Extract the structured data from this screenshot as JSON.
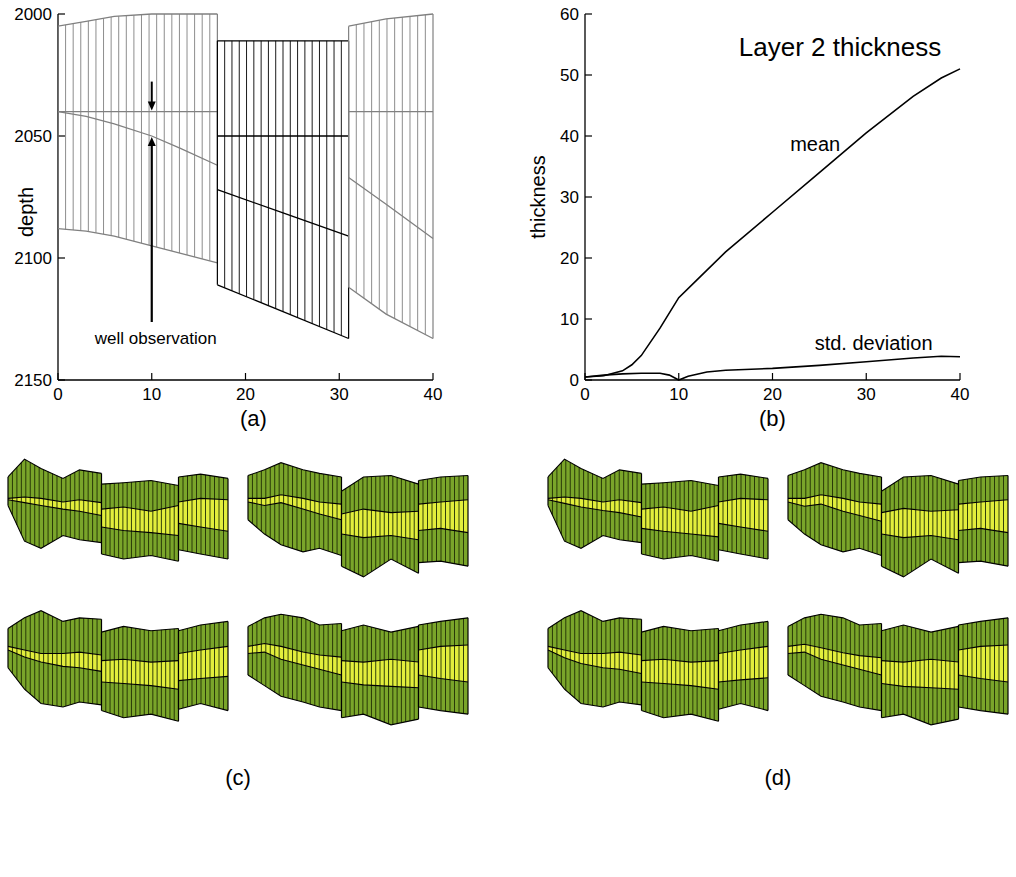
{
  "chart_data": [
    {
      "type": "line",
      "panel_label": "(a)",
      "y_label": "depth",
      "xlim": [
        0,
        40
      ],
      "xticks": [
        0,
        10,
        20,
        30,
        40
      ],
      "ylim": [
        2150,
        2000
      ],
      "yticks": [
        2000,
        2050,
        2100,
        2150
      ],
      "colors": [
        "#808080",
        "#000000",
        "#808080"
      ],
      "block_x": [
        [
          0,
          3,
          6,
          10,
          13,
          17
        ],
        [
          17,
          24,
          31
        ],
        [
          31,
          35,
          40
        ]
      ],
      "blocks": [
        [
          [
            2005,
            2003,
            2001,
            2000,
            2000,
            2000
          ],
          [
            2040,
            2040,
            2040,
            2040,
            2040,
            2040
          ],
          [
            2040,
            2042,
            2045,
            2050,
            2055,
            2062
          ],
          [
            2088,
            2089,
            2091,
            2095,
            2098,
            2102
          ]
        ],
        [
          [
            2011,
            2011,
            2011
          ],
          [
            2050,
            2050,
            2050
          ],
          [
            2072,
            2081.5,
            2091
          ],
          [
            2111,
            2122,
            2133
          ]
        ],
        [
          [
            2005,
            2002,
            2000
          ],
          [
            2040,
            2040,
            2040
          ],
          [
            2067,
            2078,
            2092
          ],
          [
            2112,
            2123,
            2133
          ]
        ]
      ],
      "annotations": [
        {
          "text": "well observation",
          "x": 10,
          "values": [
            2040,
            2050
          ]
        }
      ]
    },
    {
      "type": "line",
      "panel_label": "(b)",
      "title": "Layer 2 thickness",
      "y_label": "thickness",
      "xlim": [
        0,
        40
      ],
      "xticks": [
        0,
        10,
        20,
        30,
        40
      ],
      "ylim": [
        0,
        60
      ],
      "yticks": [
        0,
        10,
        20,
        30,
        40,
        50,
        60
      ],
      "series": [
        {
          "name": "mean",
          "color": "#000000",
          "x": [
            0,
            2,
            4,
            5,
            6,
            8,
            10,
            12,
            15,
            20,
            25,
            30,
            35,
            38,
            40
          ],
          "values": [
            0.5,
            0.7,
            1.5,
            2.5,
            4,
            8.5,
            13.5,
            16.5,
            21,
            27.5,
            34,
            40.5,
            46.5,
            49.5,
            51
          ]
        },
        {
          "name": "std. deviation",
          "color": "#000000",
          "x": [
            0,
            2,
            4,
            6,
            8,
            9,
            10,
            11,
            13,
            15,
            20,
            25,
            30,
            35,
            38,
            40
          ],
          "values": [
            0.5,
            0.8,
            1,
            1.1,
            1.1,
            0.8,
            0,
            0.6,
            1.3,
            1.6,
            1.9,
            2.4,
            3,
            3.6,
            3.9,
            3.8
          ]
        }
      ]
    },
    {
      "type": "section",
      "panel_label": "(c)",
      "tick_labels": false,
      "xlim": [
        0,
        40
      ],
      "ylim": [
        2160,
        1975
      ],
      "colors": [
        "#7aa52a",
        "#e2ee3c",
        "#7aa52a"
      ],
      "block_x": [
        [
          0,
          3,
          6,
          10,
          13,
          17
        ],
        [
          17,
          21,
          26,
          31
        ],
        [
          31,
          35,
          40
        ]
      ],
      "realizations": [
        {
          "blocks": [
            [
              [
                2010,
                1985,
                1998,
                2012,
                2000,
                2005
              ],
              [
                2040,
                2038,
                2040,
                2045,
                2042,
                2046
              ],
              [
                2042,
                2046,
                2050,
                2055,
                2058,
                2064
              ],
              [
                2050,
                2100,
                2110,
                2092,
                2098,
                2102
              ]
            ],
            [
              [
                2020,
                2018,
                2015,
                2022
              ],
              [
                2055,
                2052,
                2058,
                2050
              ],
              [
                2080,
                2085,
                2088,
                2092
              ],
              [
                2118,
                2125,
                2120,
                2128
              ]
            ],
            [
              [
                2010,
                2006,
                2012
              ],
              [
                2045,
                2040,
                2042
              ],
              [
                2075,
                2080,
                2086
              ],
              [
                2112,
                2118,
                2125
              ]
            ]
          ]
        },
        {
          "blocks": [
            [
              [
                2008,
                2000,
                1990,
                2000,
                2005,
                2010
              ],
              [
                2040,
                2040,
                2035,
                2040,
                2045,
                2048
              ],
              [
                2045,
                2050,
                2046,
                2055,
                2062,
                2070
              ],
              [
                2070,
                2090,
                2105,
                2115,
                2110,
                2120
              ]
            ],
            [
              [
                2030,
                2010,
                2008,
                2020
              ],
              [
                2062,
                2055,
                2060,
                2058
              ],
              [
                2090,
                2095,
                2092,
                2098
              ],
              [
                2135,
                2150,
                2125,
                2145
              ]
            ],
            [
              [
                2015,
                2010,
                2008
              ],
              [
                2048,
                2045,
                2042
              ],
              [
                2085,
                2082,
                2088
              ],
              [
                2130,
                2128,
                2135
              ]
            ]
          ]
        },
        {
          "blocks": [
            [
              [
                2015,
                2000,
                1990,
                2005,
                2000,
                2002
              ],
              [
                2040,
                2045,
                2050,
                2050,
                2048,
                2052
              ],
              [
                2045,
                2055,
                2062,
                2068,
                2070,
                2075
              ],
              [
                2070,
                2100,
                2120,
                2125,
                2118,
                2122
              ]
            ],
            [
              [
                2020,
                2012,
                2018,
                2015
              ],
              [
                2060,
                2058,
                2062,
                2060
              ],
              [
                2090,
                2092,
                2095,
                2100
              ],
              [
                2130,
                2140,
                2135,
                2145
              ]
            ],
            [
              [
                2018,
                2010,
                2005
              ],
              [
                2050,
                2045,
                2040
              ],
              [
                2088,
                2085,
                2082
              ],
              [
                2128,
                2120,
                2130
              ]
            ]
          ]
        },
        {
          "blocks": [
            [
              [
                2012,
                2000,
                1995,
                2000,
                2010,
                2008
              ],
              [
                2040,
                2036,
                2040,
                2048,
                2052,
                2055
              ],
              [
                2050,
                2048,
                2058,
                2066,
                2072,
                2080
              ],
              [
                2080,
                2095,
                2110,
                2118,
                2125,
                2130
              ]
            ],
            [
              [
                2018,
                2010,
                2020,
                2012
              ],
              [
                2060,
                2062,
                2058,
                2062
              ],
              [
                2090,
                2094,
                2096,
                2098
              ],
              [
                2140,
                2135,
                2150,
                2142
              ]
            ],
            [
              [
                2010,
                2005,
                2000
              ],
              [
                2045,
                2040,
                2038
              ],
              [
                2080,
                2085,
                2090
              ],
              [
                2125,
                2130,
                2135
              ]
            ]
          ]
        }
      ]
    },
    {
      "type": "section",
      "panel_label": "(d)",
      "tick_labels": false,
      "xlim": [
        0,
        40
      ],
      "ylim": [
        2160,
        1975
      ],
      "colors": [
        "#7aa52a",
        "#e2ee3c",
        "#7aa52a"
      ],
      "block_x": [
        [
          0,
          3,
          6,
          10,
          13,
          17
        ],
        [
          17,
          21,
          26,
          31
        ],
        [
          31,
          35,
          40
        ]
      ],
      "realizations": [
        {
          "blocks": [
            [
              [
                2010,
                1985,
                1998,
                2012,
                2000,
                2005
              ],
              [
                2040,
                2038,
                2040,
                2045,
                2042,
                2046
              ],
              [
                2042,
                2047,
                2052,
                2057,
                2060,
                2066
              ],
              [
                2050,
                2100,
                2110,
                2092,
                2098,
                2102
              ]
            ],
            [
              [
                2020,
                2018,
                2015,
                2022
              ],
              [
                2055,
                2052,
                2058,
                2050
              ],
              [
                2082,
                2086,
                2090,
                2094
              ],
              [
                2118,
                2125,
                2120,
                2128
              ]
            ],
            [
              [
                2010,
                2006,
                2012
              ],
              [
                2045,
                2040,
                2042
              ],
              [
                2075,
                2080,
                2086
              ],
              [
                2112,
                2118,
                2125
              ]
            ]
          ]
        },
        {
          "blocks": [
            [
              [
                2008,
                2000,
                1990,
                2000,
                2005,
                2010
              ],
              [
                2040,
                2040,
                2035,
                2040,
                2045,
                2048
              ],
              [
                2045,
                2051,
                2048,
                2058,
                2064,
                2072
              ],
              [
                2070,
                2090,
                2105,
                2115,
                2110,
                2120
              ]
            ],
            [
              [
                2030,
                2010,
                2008,
                2020
              ],
              [
                2060,
                2054,
                2058,
                2056
              ],
              [
                2090,
                2095,
                2092,
                2098
              ],
              [
                2135,
                2150,
                2125,
                2145
              ]
            ],
            [
              [
                2015,
                2010,
                2008
              ],
              [
                2048,
                2045,
                2042
              ],
              [
                2085,
                2082,
                2088
              ],
              [
                2130,
                2128,
                2135
              ]
            ]
          ]
        },
        {
          "blocks": [
            [
              [
                2015,
                2000,
                1990,
                2005,
                2000,
                2002
              ],
              [
                2040,
                2045,
                2050,
                2050,
                2048,
                2052
              ],
              [
                2045,
                2056,
                2064,
                2070,
                2072,
                2078
              ],
              [
                2070,
                2100,
                2120,
                2125,
                2118,
                2122
              ]
            ],
            [
              [
                2020,
                2012,
                2018,
                2015
              ],
              [
                2060,
                2058,
                2062,
                2060
              ],
              [
                2090,
                2092,
                2095,
                2100
              ],
              [
                2130,
                2140,
                2135,
                2145
              ]
            ],
            [
              [
                2018,
                2010,
                2005
              ],
              [
                2050,
                2045,
                2040
              ],
              [
                2090,
                2087,
                2084
              ],
              [
                2128,
                2120,
                2130
              ]
            ]
          ]
        },
        {
          "blocks": [
            [
              [
                2012,
                2000,
                1995,
                2000,
                2010,
                2008
              ],
              [
                2040,
                2037,
                2042,
                2049,
                2053,
                2056
              ],
              [
                2050,
                2048,
                2058,
                2066,
                2072,
                2080
              ],
              [
                2080,
                2095,
                2110,
                2118,
                2125,
                2130
              ]
            ],
            [
              [
                2018,
                2010,
                2020,
                2012
              ],
              [
                2060,
                2062,
                2058,
                2062
              ],
              [
                2092,
                2096,
                2098,
                2100
              ],
              [
                2140,
                2135,
                2150,
                2142
              ]
            ],
            [
              [
                2010,
                2005,
                2000
              ],
              [
                2045,
                2040,
                2038
              ],
              [
                2080,
                2085,
                2090
              ],
              [
                2125,
                2130,
                2135
              ]
            ]
          ]
        }
      ]
    }
  ]
}
